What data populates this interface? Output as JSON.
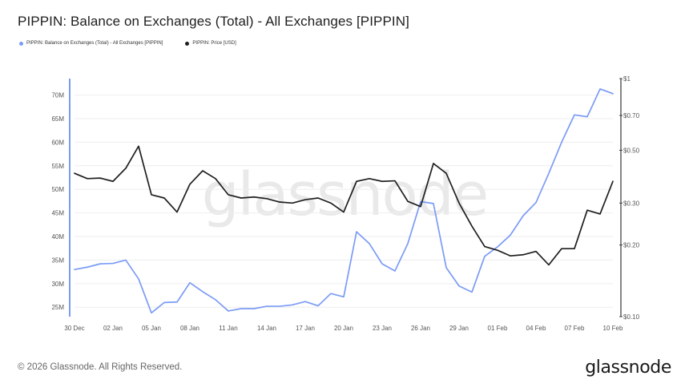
{
  "title": "PIPPIN: Balance on Exchanges (Total) - All Exchanges [PIPPIN]",
  "footer": {
    "copyright": "© 2026 Glassnode. All Rights Reserved.",
    "logo": "glassnode"
  },
  "watermark": "glassnode",
  "colors": {
    "balance": "#7b9bf5",
    "price": "#1f1f1f",
    "grid": "#eeeeee",
    "axis": "#7b9bf5"
  },
  "chart_data": {
    "type": "line",
    "legend_placement": "top-left",
    "grid": true,
    "x": [
      "30 Dec",
      "31 Dec",
      "01 Jan",
      "02 Jan",
      "03 Jan",
      "04 Jan",
      "05 Jan",
      "06 Jan",
      "07 Jan",
      "08 Jan",
      "09 Jan",
      "10 Jan",
      "11 Jan",
      "12 Jan",
      "13 Jan",
      "14 Jan",
      "15 Jan",
      "16 Jan",
      "17 Jan",
      "18 Jan",
      "19 Jan",
      "20 Jan",
      "21 Jan",
      "22 Jan",
      "23 Jan",
      "24 Jan",
      "25 Jan",
      "26 Jan",
      "27 Jan",
      "28 Jan",
      "29 Jan",
      "30 Jan",
      "31 Jan",
      "01 Feb",
      "02 Feb",
      "03 Feb",
      "04 Feb",
      "05 Feb",
      "06 Feb",
      "07 Feb",
      "08 Feb",
      "09 Feb",
      "10 Feb"
    ],
    "x_tick_labels": [
      "30 Dec",
      "02 Jan",
      "05 Jan",
      "08 Jan",
      "11 Jan",
      "14 Jan",
      "17 Jan",
      "20 Jan",
      "23 Jan",
      "26 Jan",
      "29 Jan",
      "01 Feb",
      "04 Feb",
      "07 Feb",
      "10 Feb"
    ],
    "y_left": {
      "ticks": [
        25,
        30,
        35,
        40,
        45,
        50,
        55,
        60,
        65,
        70
      ],
      "tick_labels": [
        "25M",
        "30M",
        "35M",
        "40M",
        "45M",
        "50M",
        "55M",
        "60M",
        "65M",
        "70M"
      ],
      "range": [
        23,
        73.5
      ]
    },
    "y_right": {
      "scale": "log",
      "ticks": [
        0.1,
        0.2,
        0.3,
        0.5,
        0.7,
        1.0
      ],
      "tick_labels": [
        "$0.10",
        "$0.20",
        "$0.30",
        "$0.50",
        "$0.70",
        "$1"
      ],
      "range": [
        0.1,
        1.0
      ]
    },
    "series": [
      {
        "name": "PIPPIN: Balance on Exchanges (Total) - All Exchanges [PIPPIN]",
        "axis": "left",
        "values": [
          33.0,
          33.5,
          34.2,
          34.3,
          35.0,
          31.0,
          23.8,
          26.0,
          26.1,
          30.2,
          28.3,
          26.6,
          24.2,
          24.7,
          24.7,
          25.2,
          25.2,
          25.5,
          26.2,
          25.3,
          27.9,
          27.2,
          41.0,
          38.5,
          34.2,
          32.7,
          38.5,
          47.4,
          47.0,
          33.4,
          29.5,
          28.2,
          35.8,
          37.8,
          40.3,
          44.4,
          47.2,
          53.4,
          60.0,
          65.8,
          65.4,
          71.3,
          70.3
        ]
      },
      {
        "name": "PIPPIN: Price [USD]",
        "axis": "right",
        "values": [
          0.4,
          0.38,
          0.382,
          0.37,
          0.42,
          0.52,
          0.325,
          0.315,
          0.275,
          0.36,
          0.41,
          0.38,
          0.325,
          0.315,
          0.318,
          0.313,
          0.303,
          0.3,
          0.31,
          0.315,
          0.3,
          0.275,
          0.37,
          0.38,
          0.37,
          0.372,
          0.305,
          0.29,
          0.44,
          0.4,
          0.3,
          0.24,
          0.197,
          0.19,
          0.18,
          0.182,
          0.188,
          0.165,
          0.193,
          0.193,
          0.28,
          0.27,
          0.37
        ]
      }
    ]
  }
}
